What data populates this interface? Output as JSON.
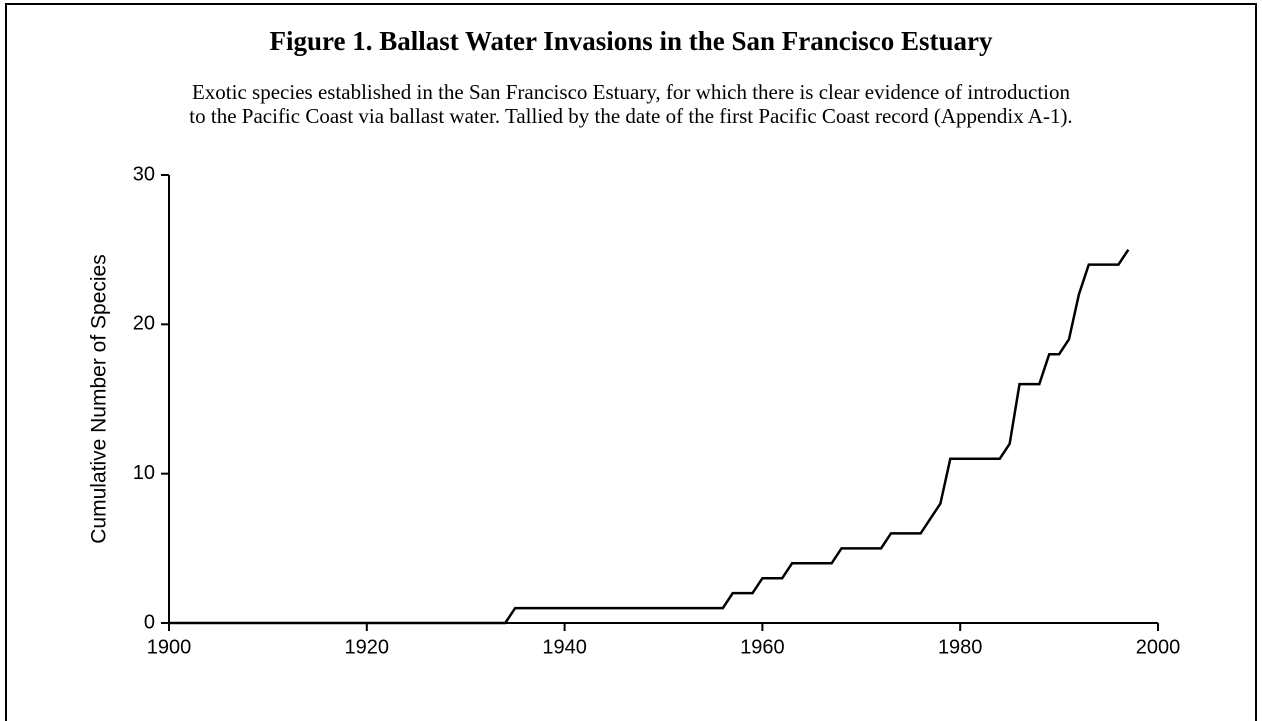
{
  "chart_data": {
    "type": "line",
    "title": "Figure 1.  Ballast Water Invasions in the San Francisco Estuary",
    "subtitle": [
      "Exotic species established in the San Francisco Estuary, for which there is clear evidence of introduction",
      "to the Pacific Coast via ballast water. Tallied by the date of the first Pacific Coast record (Appendix A-1)."
    ],
    "y_label": "Cumulative Number of Species",
    "x": [
      1900,
      1934,
      1935,
      1956,
      1957,
      1959,
      1960,
      1962,
      1963,
      1967,
      1968,
      1972,
      1973,
      1976,
      1977,
      1978,
      1979,
      1984,
      1985,
      1986,
      1988,
      1989,
      1990,
      1991,
      1992,
      1993,
      1996,
      1997
    ],
    "series": [
      {
        "name": "Cumulative species",
        "color": "#000000",
        "values": [
          0,
          0,
          1,
          1,
          2,
          2,
          3,
          3,
          4,
          4,
          5,
          5,
          6,
          6,
          7,
          8,
          11,
          11,
          12,
          16,
          16,
          18,
          18,
          19,
          22,
          24,
          24,
          25
        ]
      }
    ],
    "xlim": [
      1900,
      2000
    ],
    "xticks": [
      1900,
      1920,
      1940,
      1960,
      1980,
      2000
    ],
    "ylim": [
      0,
      30
    ],
    "yticks": [
      0,
      10,
      20,
      30
    ]
  }
}
